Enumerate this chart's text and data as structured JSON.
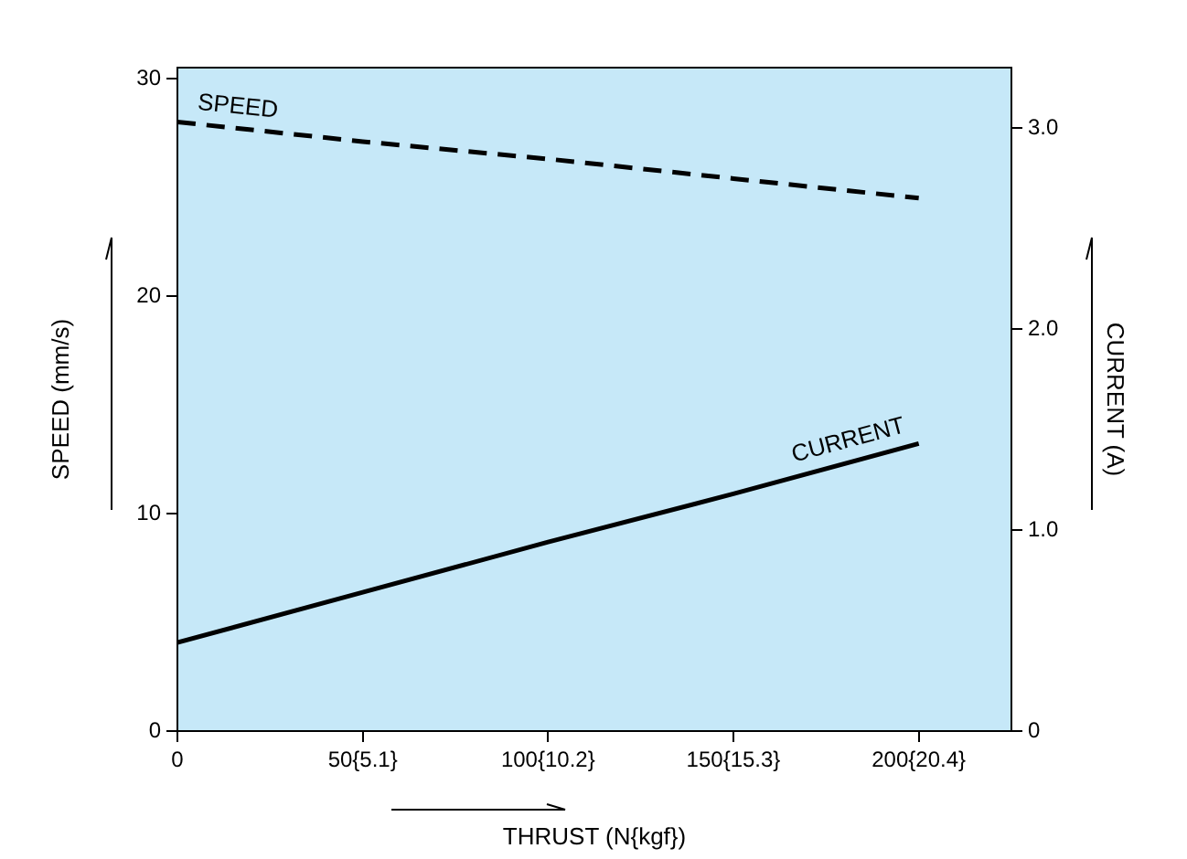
{
  "chart_data": {
    "type": "line",
    "xlabel": "THRUST (N{kgf})",
    "ylabel": "SPEED (mm/s)",
    "y2label": "CURRENT (A)",
    "categories": [
      "0",
      "50{5.1}",
      "100{10.2}",
      "150{15.3}",
      "200{20.4}"
    ],
    "ylim": [
      0,
      30.5
    ],
    "yticks": [
      0,
      10,
      20,
      30
    ],
    "y2lim": [
      0,
      3.3
    ],
    "y2ticks": [
      0,
      {
        "value": 1,
        "label": "1.0"
      },
      {
        "value": 2,
        "label": "2.0"
      },
      {
        "value": 3,
        "label": "3.0"
      }
    ],
    "grid": false,
    "legend": false,
    "marker": "none",
    "series": [
      {
        "name": "SPEED",
        "color": "#000000",
        "line_style": "dashed",
        "values": [
          28,
          27.1,
          26.3,
          25.4,
          24.5
        ]
      },
      {
        "name": "CURRENT",
        "color": "#000000",
        "line_style": "solid",
        "axis": "y2",
        "values": [
          0.44,
          0.69,
          0.94,
          1.18,
          1.43
        ]
      }
    ]
  }
}
